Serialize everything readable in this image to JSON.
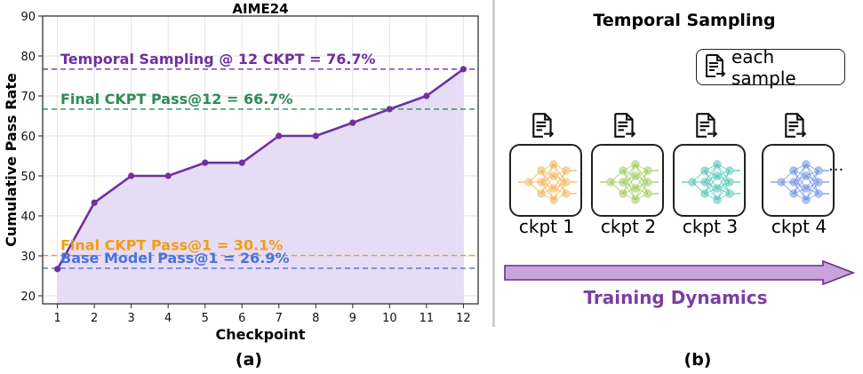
{
  "panel_a": {
    "label": "(a)",
    "chart_data": {
      "type": "line",
      "title": "AIME24",
      "xlabel": "Checkpoint",
      "ylabel": "Cumulative Pass Rate",
      "categories": [
        1,
        2,
        3,
        4,
        5,
        6,
        7,
        8,
        9,
        10,
        11,
        12
      ],
      "series": [
        {
          "values": [
            26.7,
            43.3,
            50.0,
            50.0,
            53.3,
            53.3,
            60.0,
            60.0,
            63.3,
            66.7,
            70.0,
            76.7
          ],
          "color": "#7030a0",
          "fill": "area"
        }
      ],
      "x_ticks": [
        "1",
        "2",
        "3",
        "4",
        "5",
        "6",
        "7",
        "8",
        "9",
        "10",
        "11",
        "12"
      ],
      "y_ticks": [
        "20",
        "30",
        "40",
        "50",
        "60",
        "70",
        "80",
        "90"
      ],
      "xlim": [
        0.6,
        12.4
      ],
      "ylim": [
        18,
        90
      ],
      "grid": true,
      "reference_lines": [
        {
          "label": "Temporal Sampling @ 12 CKPT = 76.7%",
          "value": 76.7,
          "color": "#7030a0"
        },
        {
          "label": "Final CKPT Pass@12 = 66.7%",
          "value": 66.7,
          "color": "#2e8b57"
        },
        {
          "label": "Final CKPT Pass@1 = 30.1%",
          "value": 30.1,
          "color": "#f39c12"
        },
        {
          "label": "Base Model Pass@1 = 26.9%",
          "value": 26.9,
          "color": "#4a72e0"
        }
      ]
    }
  },
  "panel_b": {
    "label": "(b)",
    "title": "Temporal Sampling",
    "legend_label": "each sample",
    "legend_icon": "document-arrow-icon",
    "checkpoints": [
      {
        "label": "ckpt 1",
        "color": "#f0b450"
      },
      {
        "label": "ckpt 2",
        "color": "#9dc95a"
      },
      {
        "label": "ckpt 3",
        "color": "#4fc3b5"
      },
      {
        "label": "ckpt 4",
        "color": "#6a8fe0"
      }
    ],
    "ellipsis": "...",
    "arrow_label": "Training Dynamics",
    "arrow_color": "#c9a3dc"
  }
}
